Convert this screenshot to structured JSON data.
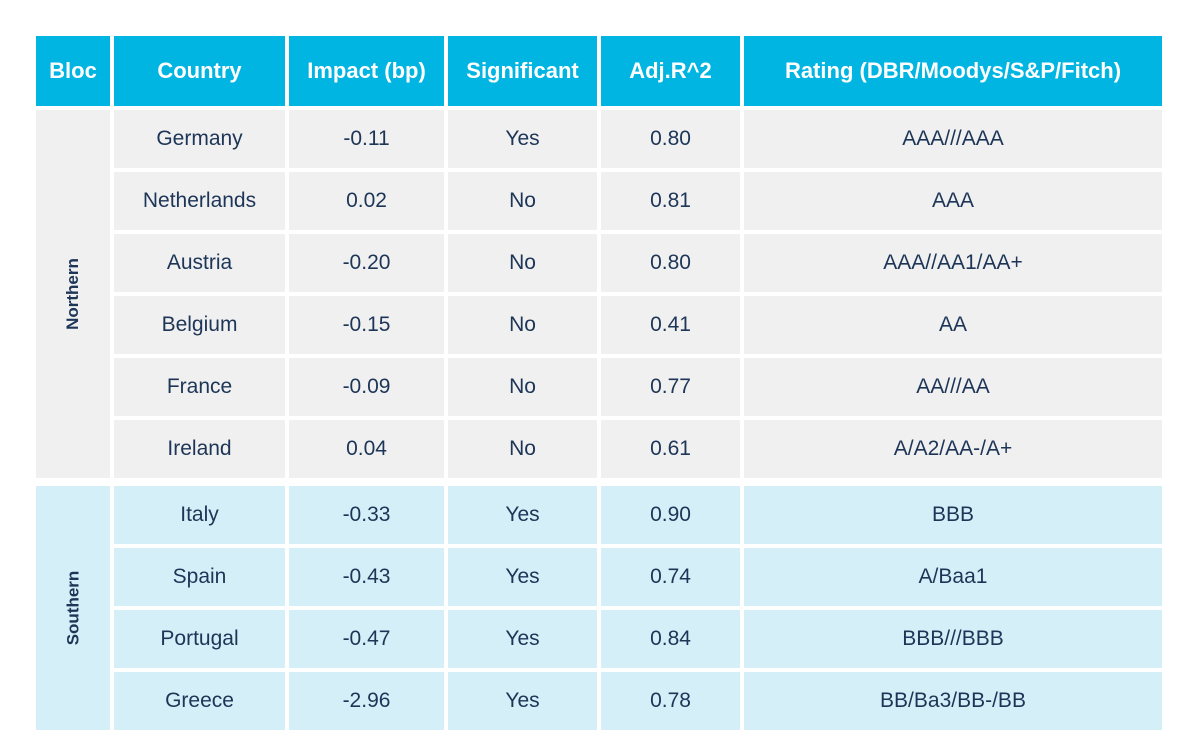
{
  "table": {
    "headers": [
      "Bloc",
      "Country",
      "Impact (bp)",
      "Significant",
      "Adj.R^2",
      "Rating (DBR/Moodys/S&P/Fitch)"
    ],
    "blocs": [
      {
        "name": "Northern",
        "rows": [
          {
            "country": "Germany",
            "impact": "-0.11",
            "significant": "Yes",
            "adj_r2": "0.80",
            "rating": "AAA///AAA"
          },
          {
            "country": "Netherlands",
            "impact": "0.02",
            "significant": "No",
            "adj_r2": "0.81",
            "rating": "AAA"
          },
          {
            "country": "Austria",
            "impact": "-0.20",
            "significant": "No",
            "adj_r2": "0.80",
            "rating": "AAA//AA1/AA+"
          },
          {
            "country": "Belgium",
            "impact": "-0.15",
            "significant": "No",
            "adj_r2": "0.41",
            "rating": "AA"
          },
          {
            "country": "France",
            "impact": "-0.09",
            "significant": "No",
            "adj_r2": "0.77",
            "rating": "AA///AA"
          },
          {
            "country": "Ireland",
            "impact": "0.04",
            "significant": "No",
            "adj_r2": "0.61",
            "rating": "A/A2/AA-/A+"
          }
        ]
      },
      {
        "name": "Southern",
        "rows": [
          {
            "country": "Italy",
            "impact": "-0.33",
            "significant": "Yes",
            "adj_r2": "0.90",
            "rating": "BBB"
          },
          {
            "country": "Spain",
            "impact": "-0.43",
            "significant": "Yes",
            "adj_r2": "0.74",
            "rating": "A/Baa1"
          },
          {
            "country": "Portugal",
            "impact": "-0.47",
            "significant": "Yes",
            "adj_r2": "0.84",
            "rating": "BBB///BBB"
          },
          {
            "country": "Greece",
            "impact": "-2.96",
            "significant": "Yes",
            "adj_r2": "0.78",
            "rating": "BB/Ba3/BB-/BB"
          }
        ]
      }
    ]
  },
  "colors": {
    "header_bg": "#00b5e2",
    "northern_bg": "#f0f0f0",
    "southern_bg": "#d4eff7",
    "text": "#1d3557"
  }
}
